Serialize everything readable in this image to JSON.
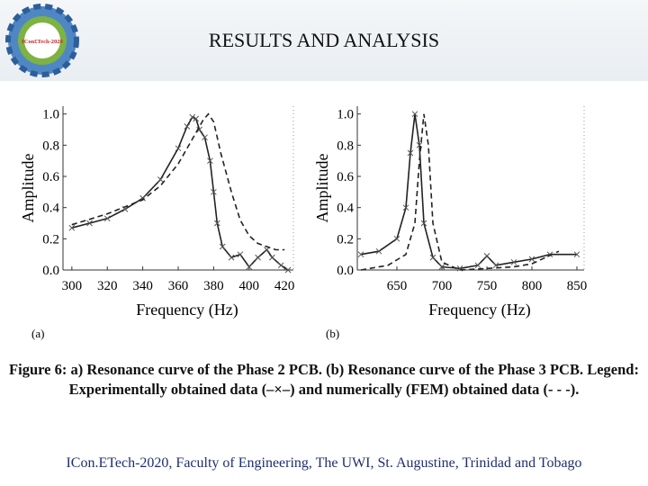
{
  "header": {
    "title": "RESULTS AND ANALYSIS",
    "logo_text": "ICon£Tech-2020"
  },
  "caption": "Figure 6: a) Resonance curve of the Phase 2 PCB. (b) Resonance curve of the Phase 3 PCB. Legend: Experimentally obtained data (–×–) and numerically (FEM) obtained data (- - -).",
  "footer": "ICon.ETech-2020, Faculty of Engineering, The UWI, St. Augustine, Trinidad and Tobago",
  "chart_data": [
    {
      "type": "line",
      "panel_label": "(a)",
      "x_label": "Frequency (Hz)",
      "y_label": "Amplitude",
      "xlim": [
        295,
        425
      ],
      "xticks": [
        300,
        320,
        340,
        360,
        380,
        400,
        420
      ],
      "ylim": [
        0,
        1.05
      ],
      "yticks": [
        {
          "value": 0,
          "label": "0.0"
        },
        0.2,
        0.4,
        0.6,
        0.8,
        {
          "value": 1,
          "label": "1.0"
        }
      ],
      "series": [
        {
          "style": "solid",
          "markers": true,
          "color": "#222222",
          "x": [
            300,
            310,
            320,
            330,
            340,
            350,
            360,
            365,
            368,
            370,
            372,
            375,
            378,
            380,
            382,
            385,
            390,
            395,
            400,
            405,
            410,
            413,
            418,
            422
          ],
          "values": [
            0.27,
            0.3,
            0.33,
            0.39,
            0.46,
            0.58,
            0.78,
            0.92,
            0.98,
            0.97,
            0.9,
            0.85,
            0.7,
            0.5,
            0.3,
            0.15,
            0.08,
            0.1,
            0.02,
            0.08,
            0.13,
            0.08,
            0.03,
            0.0
          ]
        },
        {
          "style": "dashed",
          "markers": false,
          "color": "#222222",
          "x": [
            300,
            320,
            340,
            350,
            360,
            368,
            374,
            377,
            380,
            384,
            390,
            395,
            400,
            405,
            410,
            415,
            420
          ],
          "values": [
            0.29,
            0.36,
            0.45,
            0.54,
            0.68,
            0.84,
            0.96,
            1.0,
            0.95,
            0.75,
            0.5,
            0.32,
            0.22,
            0.17,
            0.15,
            0.13,
            0.13
          ]
        }
      ]
    },
    {
      "type": "line",
      "panel_label": "(b)",
      "x_label": "Frequency (Hz)",
      "y_label": "Amplitude",
      "xlim": [
        606,
        858
      ],
      "xticks": [
        650,
        700,
        750,
        800,
        850
      ],
      "ylim": [
        0,
        1.05
      ],
      "yticks": [
        {
          "value": 0,
          "label": "0.0"
        },
        0.2,
        0.4,
        0.6,
        0.8,
        {
          "value": 1,
          "label": "1.0"
        }
      ],
      "series": [
        {
          "style": "solid",
          "markers": true,
          "color": "#222222",
          "x": [
            610,
            630,
            650,
            660,
            665,
            670,
            675,
            680,
            690,
            700,
            720,
            740,
            750,
            760,
            780,
            800,
            820,
            850
          ],
          "values": [
            0.1,
            0.12,
            0.2,
            0.4,
            0.75,
            1.0,
            0.8,
            0.3,
            0.08,
            0.02,
            0.01,
            0.03,
            0.09,
            0.03,
            0.05,
            0.07,
            0.1,
            0.1
          ]
        },
        {
          "style": "dashed",
          "markers": false,
          "color": "#222222",
          "x": [
            610,
            640,
            660,
            670,
            675,
            680,
            685,
            690,
            700,
            720,
            750,
            780,
            800,
            830
          ],
          "values": [
            0.0,
            0.03,
            0.1,
            0.3,
            0.7,
            1.0,
            0.8,
            0.3,
            0.05,
            0.0,
            0.01,
            0.02,
            0.04,
            0.12
          ]
        }
      ]
    }
  ]
}
